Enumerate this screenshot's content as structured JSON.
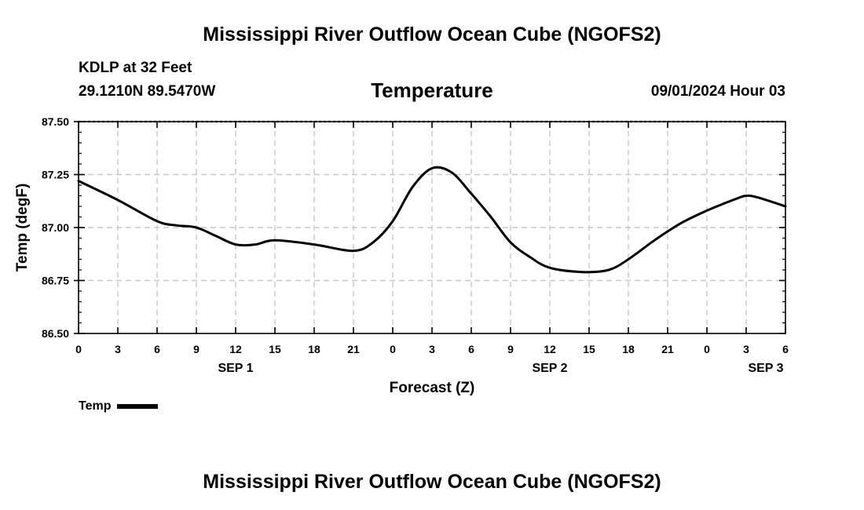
{
  "header": {
    "title_top": "Mississippi River Outflow Ocean Cube (NGOFS2)",
    "title_bottom": "Mississippi River Outflow Ocean Cube (NGOFS2)",
    "station_name": "KDLP at 32 Feet",
    "station_coords": "29.1210N  89.5470W",
    "datetime": "09/01/2024 Hour 03"
  },
  "chart_data": {
    "type": "line",
    "title": "Temperature",
    "xlabel": "Forecast (Z)",
    "ylabel": "Temp (degF)",
    "ylim": [
      86.5,
      87.5
    ],
    "xlim": [
      0,
      54
    ],
    "grid": true,
    "y_ticks": [
      "87.50",
      "87.25",
      "87.00",
      "86.75",
      "86.50"
    ],
    "y_tick_values": [
      87.5,
      87.25,
      87.0,
      86.75,
      86.5
    ],
    "x_tick_labels": [
      "0",
      "3",
      "6",
      "9",
      "12",
      "15",
      "18",
      "21",
      "0",
      "3",
      "6",
      "9",
      "12",
      "15",
      "18",
      "21",
      "0",
      "3",
      "6"
    ],
    "date_labels": [
      {
        "label": "SEP 1",
        "hour": 12
      },
      {
        "label": "SEP 2",
        "hour": 36
      },
      {
        "label": "SEP 3",
        "hour": 52.5
      }
    ],
    "legend": "bottom-left",
    "series": [
      {
        "name": "Temp",
        "color": "#000000",
        "x": [
          0,
          3,
          6,
          7.5,
          9,
          10.5,
          12,
          13.5,
          15,
          18,
          21,
          22.5,
          24,
          25.5,
          27,
          28.5,
          30,
          31.5,
          33,
          34.5,
          36,
          38.5,
          40.5,
          42,
          44,
          46,
          48,
          50,
          51,
          52,
          54
        ],
        "values": [
          87.22,
          87.13,
          87.03,
          87.01,
          87.0,
          86.96,
          86.92,
          86.92,
          86.94,
          86.92,
          86.89,
          86.93,
          87.03,
          87.19,
          87.28,
          87.26,
          87.16,
          87.05,
          86.93,
          86.86,
          86.81,
          86.79,
          86.8,
          86.85,
          86.94,
          87.02,
          87.08,
          87.13,
          87.15,
          87.14,
          87.1
        ]
      }
    ]
  }
}
